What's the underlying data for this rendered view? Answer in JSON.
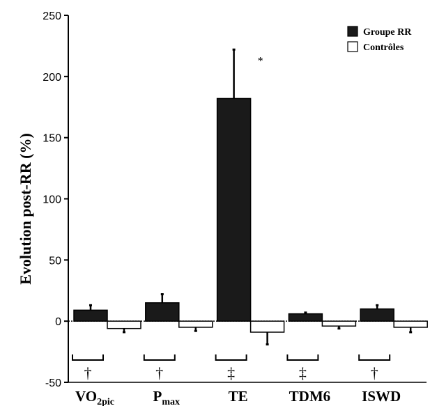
{
  "chart_data": {
    "type": "bar",
    "ylabel": "Evolution post-RR (%)",
    "ylim": [
      -50,
      250
    ],
    "yticks": [
      "-50",
      "0",
      "50",
      "100",
      "150",
      "200",
      "250"
    ],
    "categories": [
      {
        "main": "VO",
        "sub": "2pic"
      },
      {
        "main": "P",
        "sub": "max"
      },
      {
        "main": "TE",
        "sub": ""
      },
      {
        "main": "TDM6",
        "sub": ""
      },
      {
        "main": "ISWD",
        "sub": ""
      }
    ],
    "series": [
      {
        "name": "Groupe RR",
        "color": "#1a1a1a",
        "values": [
          9,
          15,
          182,
          6,
          10
        ],
        "errors": [
          4,
          7,
          40,
          1,
          3
        ]
      },
      {
        "name": "Contrôles",
        "color": "#ffffff",
        "values": [
          -6,
          -5,
          -9,
          -4,
          -5
        ],
        "errors": [
          3,
          3,
          10,
          2,
          4
        ]
      }
    ],
    "significance_between_groups": [
      "†",
      "†",
      "‡",
      "‡",
      "†"
    ],
    "significance_within": [
      {
        "category": "TE",
        "series": "Groupe RR",
        "mark": "*"
      }
    ],
    "zero_line": "dotted",
    "legend": "top-right"
  }
}
